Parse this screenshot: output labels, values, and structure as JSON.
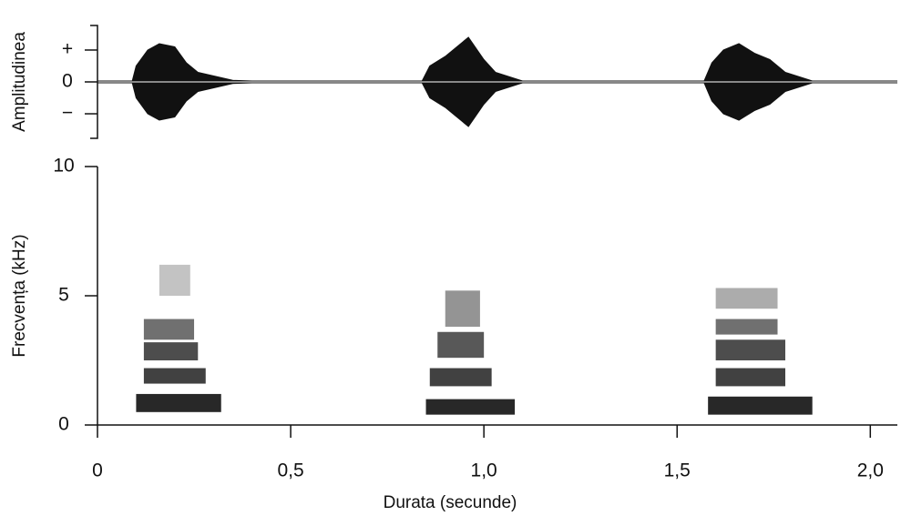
{
  "chart_data": [
    {
      "type": "waveform",
      "ylabel": "Amplitudinea",
      "color": "#111111",
      "xlim": [
        0,
        2.07
      ],
      "ylim": [
        -1.77,
        1.77
      ],
      "yticks": [
        {
          "value": 1,
          "label": "+"
        },
        0,
        {
          "value": -1,
          "label": "−"
        }
      ],
      "x": [
        0,
        0.09,
        0.1,
        0.13,
        0.16,
        0.2,
        0.23,
        0.26,
        0.35,
        0.4,
        0.84,
        0.86,
        0.9,
        0.94,
        0.96,
        1.0,
        1.03,
        1.1,
        1.57,
        1.59,
        1.62,
        1.66,
        1.7,
        1.74,
        1.78,
        1.85,
        2.07
      ],
      "values": [
        0.03,
        0.03,
        0.5,
        1.0,
        1.2,
        1.1,
        0.6,
        0.3,
        0.05,
        0.03,
        0.03,
        0.5,
        0.8,
        1.2,
        1.4,
        0.7,
        0.3,
        0.03,
        0.03,
        0.6,
        1.0,
        1.2,
        0.9,
        0.7,
        0.3,
        0.03,
        0.03
      ]
    },
    {
      "type": "spectrogram",
      "ylabel": "Frecvența (kHz)",
      "xlabel": "Durata (secunde)",
      "color": "#111111",
      "xlim": [
        0,
        2.07
      ],
      "ylim": [
        0,
        10
      ],
      "xticks": [
        0,
        {
          "value": 0.5,
          "label": "0,5"
        },
        {
          "value": 1,
          "label": "1,0"
        },
        {
          "value": 1.5,
          "label": "1,5"
        },
        {
          "value": 2,
          "label": "2,0"
        }
      ],
      "yticks": [
        0,
        5,
        10
      ],
      "cells": {
        "x0": [
          0.1,
          0.12,
          0.12,
          0.12,
          0.16,
          0.85,
          0.86,
          0.88,
          0.9,
          1.58,
          1.6,
          1.6,
          1.6,
          1.6
        ],
        "x1": [
          0.32,
          0.28,
          0.26,
          0.25,
          0.24,
          1.08,
          1.02,
          1.0,
          0.99,
          1.85,
          1.78,
          1.78,
          1.76,
          1.76
        ],
        "y0": [
          0.5,
          1.6,
          2.5,
          3.3,
          5,
          0.4,
          1.5,
          2.6,
          3.8,
          0.4,
          1.5,
          2.5,
          3.5,
          4.5
        ],
        "y1": [
          1.2,
          2.2,
          3.2,
          4.1,
          6.2,
          1.0,
          2.2,
          3.6,
          5.2,
          1.1,
          2.2,
          3.3,
          4.1,
          5.3
        ],
        "values": [
          0.9,
          0.8,
          0.75,
          0.6,
          0.25,
          0.9,
          0.8,
          0.7,
          0.45,
          0.9,
          0.8,
          0.75,
          0.6,
          0.35
        ]
      }
    }
  ]
}
